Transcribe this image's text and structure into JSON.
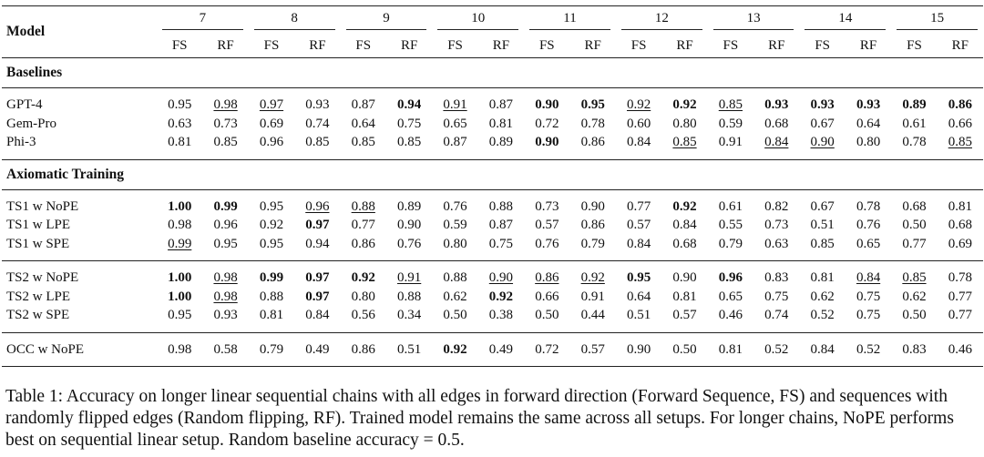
{
  "table": {
    "model_header": "Model",
    "groups": [
      "7",
      "8",
      "9",
      "10",
      "11",
      "12",
      "13",
      "14",
      "15"
    ],
    "sub_headers": [
      "FS",
      "RF"
    ],
    "sections": [
      {
        "title": "Baselines",
        "blocks": [
          [
            {
              "name": "GPT-4",
              "values": [
                {
                  "v": "0.95"
                },
                {
                  "v": "0.98",
                  "u": true
                },
                {
                  "v": "0.97",
                  "u": true
                },
                {
                  "v": "0.93"
                },
                {
                  "v": "0.87"
                },
                {
                  "v": "0.94",
                  "b": true
                },
                {
                  "v": "0.91",
                  "u": true
                },
                {
                  "v": "0.87"
                },
                {
                  "v": "0.90",
                  "b": true
                },
                {
                  "v": "0.95",
                  "b": true
                },
                {
                  "v": "0.92",
                  "u": true
                },
                {
                  "v": "0.92",
                  "b": true
                },
                {
                  "v": "0.85",
                  "u": true
                },
                {
                  "v": "0.93",
                  "b": true
                },
                {
                  "v": "0.93",
                  "b": true
                },
                {
                  "v": "0.93",
                  "b": true
                },
                {
                  "v": "0.89",
                  "b": true
                },
                {
                  "v": "0.86",
                  "b": true
                }
              ]
            },
            {
              "name": "Gem-Pro",
              "values": [
                {
                  "v": "0.63"
                },
                {
                  "v": "0.73"
                },
                {
                  "v": "0.69"
                },
                {
                  "v": "0.74"
                },
                {
                  "v": "0.64"
                },
                {
                  "v": "0.75"
                },
                {
                  "v": "0.65"
                },
                {
                  "v": "0.81"
                },
                {
                  "v": "0.72"
                },
                {
                  "v": "0.78"
                },
                {
                  "v": "0.60"
                },
                {
                  "v": "0.80"
                },
                {
                  "v": "0.59"
                },
                {
                  "v": "0.68"
                },
                {
                  "v": "0.67"
                },
                {
                  "v": "0.64"
                },
                {
                  "v": "0.61"
                },
                {
                  "v": "0.66"
                }
              ]
            },
            {
              "name": "Phi-3",
              "values": [
                {
                  "v": "0.81"
                },
                {
                  "v": "0.85"
                },
                {
                  "v": "0.96"
                },
                {
                  "v": "0.85"
                },
                {
                  "v": "0.85"
                },
                {
                  "v": "0.85"
                },
                {
                  "v": "0.87"
                },
                {
                  "v": "0.89"
                },
                {
                  "v": "0.90",
                  "b": true
                },
                {
                  "v": "0.86"
                },
                {
                  "v": "0.84"
                },
                {
                  "v": "0.85",
                  "u": true
                },
                {
                  "v": "0.91"
                },
                {
                  "v": "0.84",
                  "u": true
                },
                {
                  "v": "0.90",
                  "u": true
                },
                {
                  "v": "0.80"
                },
                {
                  "v": "0.78"
                },
                {
                  "v": "0.85",
                  "u": true
                }
              ]
            }
          ]
        ]
      },
      {
        "title": "Axiomatic Training",
        "blocks": [
          [
            {
              "name": "TS1 w NoPE",
              "values": [
                {
                  "v": "1.00",
                  "b": true
                },
                {
                  "v": "0.99",
                  "b": true
                },
                {
                  "v": "0.95"
                },
                {
                  "v": "0.96",
                  "u": true
                },
                {
                  "v": "0.88",
                  "u": true
                },
                {
                  "v": "0.89"
                },
                {
                  "v": "0.76"
                },
                {
                  "v": "0.88"
                },
                {
                  "v": "0.73"
                },
                {
                  "v": "0.90"
                },
                {
                  "v": "0.77"
                },
                {
                  "v": "0.92",
                  "b": true
                },
                {
                  "v": "0.61"
                },
                {
                  "v": "0.82"
                },
                {
                  "v": "0.67"
                },
                {
                  "v": "0.78"
                },
                {
                  "v": "0.68"
                },
                {
                  "v": "0.81"
                }
              ]
            },
            {
              "name": "TS1 w LPE",
              "values": [
                {
                  "v": "0.98"
                },
                {
                  "v": "0.96"
                },
                {
                  "v": "0.92"
                },
                {
                  "v": "0.97",
                  "b": true
                },
                {
                  "v": "0.77"
                },
                {
                  "v": "0.90"
                },
                {
                  "v": "0.59"
                },
                {
                  "v": "0.87"
                },
                {
                  "v": "0.57"
                },
                {
                  "v": "0.86"
                },
                {
                  "v": "0.57"
                },
                {
                  "v": "0.84"
                },
                {
                  "v": "0.55"
                },
                {
                  "v": "0.73"
                },
                {
                  "v": "0.51"
                },
                {
                  "v": "0.76"
                },
                {
                  "v": "0.50"
                },
                {
                  "v": "0.68"
                }
              ]
            },
            {
              "name": "TS1 w SPE",
              "values": [
                {
                  "v": "0.99",
                  "u": true
                },
                {
                  "v": "0.95"
                },
                {
                  "v": "0.95"
                },
                {
                  "v": "0.94"
                },
                {
                  "v": "0.86"
                },
                {
                  "v": "0.76"
                },
                {
                  "v": "0.80"
                },
                {
                  "v": "0.75"
                },
                {
                  "v": "0.76"
                },
                {
                  "v": "0.79"
                },
                {
                  "v": "0.84"
                },
                {
                  "v": "0.68"
                },
                {
                  "v": "0.79"
                },
                {
                  "v": "0.63"
                },
                {
                  "v": "0.85"
                },
                {
                  "v": "0.65"
                },
                {
                  "v": "0.77"
                },
                {
                  "v": "0.69"
                }
              ]
            }
          ],
          [
            {
              "name": "TS2 w NoPE",
              "values": [
                {
                  "v": "1.00",
                  "b": true
                },
                {
                  "v": "0.98",
                  "u": true
                },
                {
                  "v": "0.99",
                  "b": true
                },
                {
                  "v": "0.97",
                  "b": true
                },
                {
                  "v": "0.92",
                  "b": true
                },
                {
                  "v": "0.91",
                  "u": true
                },
                {
                  "v": "0.88"
                },
                {
                  "v": "0.90",
                  "u": true
                },
                {
                  "v": "0.86",
                  "u": true
                },
                {
                  "v": "0.92",
                  "u": true
                },
                {
                  "v": "0.95",
                  "b": true
                },
                {
                  "v": "0.90"
                },
                {
                  "v": "0.96",
                  "b": true
                },
                {
                  "v": "0.83"
                },
                {
                  "v": "0.81"
                },
                {
                  "v": "0.84",
                  "u": true
                },
                {
                  "v": "0.85",
                  "u": true
                },
                {
                  "v": "0.78"
                }
              ]
            },
            {
              "name": "TS2 w LPE",
              "values": [
                {
                  "v": "1.00",
                  "b": true
                },
                {
                  "v": "0.98",
                  "u": true
                },
                {
                  "v": "0.88"
                },
                {
                  "v": "0.97",
                  "b": true
                },
                {
                  "v": "0.80"
                },
                {
                  "v": "0.88"
                },
                {
                  "v": "0.62"
                },
                {
                  "v": "0.92",
                  "b": true
                },
                {
                  "v": "0.66"
                },
                {
                  "v": "0.91"
                },
                {
                  "v": "0.64"
                },
                {
                  "v": "0.81"
                },
                {
                  "v": "0.65"
                },
                {
                  "v": "0.75"
                },
                {
                  "v": "0.62"
                },
                {
                  "v": "0.75"
                },
                {
                  "v": "0.62"
                },
                {
                  "v": "0.77"
                }
              ]
            },
            {
              "name": "TS2 w SPE",
              "values": [
                {
                  "v": "0.95"
                },
                {
                  "v": "0.93"
                },
                {
                  "v": "0.81"
                },
                {
                  "v": "0.84"
                },
                {
                  "v": "0.56"
                },
                {
                  "v": "0.34"
                },
                {
                  "v": "0.50"
                },
                {
                  "v": "0.38"
                },
                {
                  "v": "0.50"
                },
                {
                  "v": "0.44"
                },
                {
                  "v": "0.51"
                },
                {
                  "v": "0.57"
                },
                {
                  "v": "0.46"
                },
                {
                  "v": "0.74"
                },
                {
                  "v": "0.52"
                },
                {
                  "v": "0.75"
                },
                {
                  "v": "0.50"
                },
                {
                  "v": "0.77"
                }
              ]
            }
          ],
          [
            {
              "name": "OCC w NoPE",
              "values": [
                {
                  "v": "0.98"
                },
                {
                  "v": "0.58"
                },
                {
                  "v": "0.79"
                },
                {
                  "v": "0.49"
                },
                {
                  "v": "0.86"
                },
                {
                  "v": "0.51"
                },
                {
                  "v": "0.92",
                  "b": true
                },
                {
                  "v": "0.49"
                },
                {
                  "v": "0.72"
                },
                {
                  "v": "0.57"
                },
                {
                  "v": "0.90"
                },
                {
                  "v": "0.50"
                },
                {
                  "v": "0.81"
                },
                {
                  "v": "0.52"
                },
                {
                  "v": "0.84"
                },
                {
                  "v": "0.52"
                },
                {
                  "v": "0.83"
                },
                {
                  "v": "0.46"
                }
              ]
            }
          ]
        ]
      }
    ]
  },
  "caption": "Table 1: Accuracy on longer linear sequential chains with all edges in forward direction (Forward Sequence, FS) and sequences with randomly flipped edges (Random flipping, RF). Trained model remains the same across all setups. For longer chains, NoPE performs best on sequential linear setup. Random baseline accuracy = 0.5."
}
